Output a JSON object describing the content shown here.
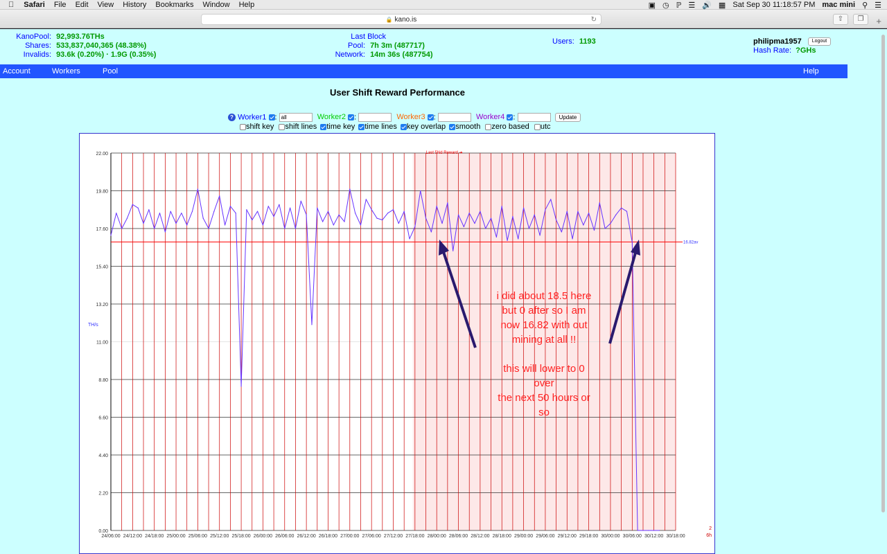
{
  "menubar": {
    "apple": "",
    "items": [
      "Safari",
      "File",
      "Edit",
      "View",
      "History",
      "Bookmarks",
      "Window",
      "Help"
    ],
    "datetime": "Sat Sep 30  11:18:57 PM",
    "user": "mac mini"
  },
  "browser": {
    "url": "kano.is"
  },
  "stats": {
    "kanopool_label": "KanoPool:",
    "kanopool_value": "92,993.76THs",
    "shares_label": "Shares:",
    "shares_value": "533,837,040,365 (48.38%)",
    "invalids_label": "Invalids:",
    "invalids_value": "93.6k (0.20%) · 1.9G (0.35%)",
    "lastblock_label": "Last Block",
    "pool_label": "Pool:",
    "pool_value": "7h 3m (487717)",
    "network_label": "Network:",
    "network_value": "14m 36s (487754)",
    "users_label": "Users:",
    "users_value": "1193",
    "username": "philipma1957",
    "logout_label": "Logout",
    "hashrate_label": "Hash Rate:",
    "hashrate_value": "?GHs"
  },
  "nav": {
    "account": "Account",
    "workers": "Workers",
    "pool": "Pool",
    "help": "Help"
  },
  "page_title": "User Shift Reward Performance",
  "controls": {
    "help_icon": "question-circle-icon",
    "worker1": "Worker1",
    "worker1_value": "all",
    "worker2": "Worker2",
    "worker3": "Worker3",
    "worker4": "Worker4",
    "update": "Update",
    "options": [
      {
        "label": "shift key",
        "checked": false
      },
      {
        "label": "shift lines",
        "checked": false
      },
      {
        "label": "time key",
        "checked": true
      },
      {
        "label": "time lines",
        "checked": true
      },
      {
        "label": "key overlap",
        "checked": true
      },
      {
        "label": "smooth",
        "checked": true
      },
      {
        "label": "zero based",
        "checked": false
      },
      {
        "label": "utc",
        "checked": false
      }
    ],
    "colors": {
      "worker1": "#0000ff",
      "worker2": "#00cc00",
      "worker3": "#ff6600",
      "worker4": "#9900cc"
    }
  },
  "chart_data": {
    "type": "line",
    "title": "",
    "ylabel": "TH/s",
    "xlabel": "",
    "ylim": [
      0,
      22
    ],
    "yticks": [
      "0.00",
      "2.20",
      "4.40",
      "6.60",
      "8.80",
      "11.00",
      "13.20",
      "15.40",
      "17.60",
      "19.80",
      "22.00"
    ],
    "xticks": [
      "24/06:00",
      "24/12:00",
      "24/18:00",
      "25/00:00",
      "25/06:00",
      "25/12:00",
      "25/18:00",
      "26/00:00",
      "26/06:00",
      "26/12:00",
      "26/18:00",
      "27/00:00",
      "27/06:00",
      "27/12:00",
      "27/18:00",
      "28/00:00",
      "28/06:00",
      "28/12:00",
      "28/18:00",
      "29/00:00",
      "29/06:00",
      "29/12:00",
      "29/18:00",
      "30/00:00",
      "30/06:00",
      "30/12:00",
      "30/18:00"
    ],
    "average_label": "16.82av",
    "average": 16.82,
    "marker_label": "Last 5Nd Reward ➔",
    "right_labels": [
      "2",
      "6h"
    ],
    "grid": true,
    "colors": {
      "line": "#6633ff",
      "average": "#ff0000",
      "shading": "#fde8e8",
      "timelines": "#cc0000"
    },
    "series": [
      {
        "name": "",
        "x": [
          0,
          0.25,
          0.5,
          0.75,
          1,
          1.25,
          1.5,
          1.75,
          2,
          2.25,
          2.5,
          2.75,
          3,
          3.25,
          3.5,
          3.75,
          4,
          4.25,
          4.5,
          4.75,
          5,
          5.25,
          5.5,
          5.75,
          6,
          6.25,
          6.5,
          6.75,
          7,
          7.25,
          7.5,
          7.75,
          8,
          8.25,
          8.5,
          8.75,
          9,
          9.25,
          9.5,
          9.75,
          10,
          10.25,
          10.5,
          10.75,
          11,
          11.25,
          11.5,
          11.75,
          12,
          12.25,
          12.5,
          12.75,
          13,
          13.25,
          13.5,
          13.75,
          14,
          14.25,
          14.5,
          14.75,
          15,
          15.25,
          15.5,
          15.75,
          16,
          16.25,
          16.5,
          16.75,
          17,
          17.25,
          17.5,
          17.75,
          18,
          18.25,
          18.5,
          18.75,
          19,
          19.25,
          19.5,
          19.75,
          20,
          20.25,
          20.5,
          20.75,
          21,
          21.25,
          21.5,
          21.75,
          22,
          22.25,
          22.5,
          22.75,
          23,
          23.25,
          23.5,
          23.75,
          24,
          24.25,
          24.5,
          24.75,
          25,
          25.25
        ],
        "values": [
          17.2,
          18.5,
          17.6,
          18.2,
          19.0,
          18.8,
          17.9,
          18.7,
          17.6,
          18.5,
          17.4,
          18.6,
          17.9,
          18.5,
          17.8,
          18.6,
          19.9,
          18.2,
          17.6,
          18.6,
          19.5,
          17.8,
          18.9,
          18.5,
          8.4,
          18.7,
          18.1,
          18.6,
          17.8,
          18.9,
          18.3,
          19.0,
          17.6,
          18.8,
          17.6,
          19.2,
          18.4,
          12.0,
          18.8,
          18.0,
          18.6,
          17.8,
          18.4,
          18.0,
          19.9,
          18.5,
          17.8,
          19.3,
          18.7,
          18.2,
          18.1,
          18.5,
          18.7,
          17.9,
          18.6,
          17.0,
          17.7,
          19.8,
          18.2,
          17.4,
          18.9,
          17.9,
          19.1,
          16.3,
          18.4,
          17.7,
          18.5,
          17.9,
          18.6,
          17.6,
          18.2,
          17.1,
          18.9,
          16.9,
          18.3,
          17.0,
          18.8,
          17.6,
          18.4,
          17.2,
          18.7,
          19.3,
          18.1,
          17.4,
          18.6,
          17.0,
          18.6,
          17.8,
          18.5,
          17.5,
          19.1,
          17.6,
          17.9,
          18.4,
          18.8,
          18.6,
          16.8,
          0.0,
          0.0,
          0.0,
          0.0,
          0.0
        ]
      }
    ]
  },
  "annotation": {
    "text_lines": [
      "i did about 18.5 here",
      "but 0 after so I am",
      "now 16.82 with out",
      "mining at all !!",
      "",
      "this will lower to 0",
      "over",
      "the next 50 hours or",
      "so"
    ]
  }
}
